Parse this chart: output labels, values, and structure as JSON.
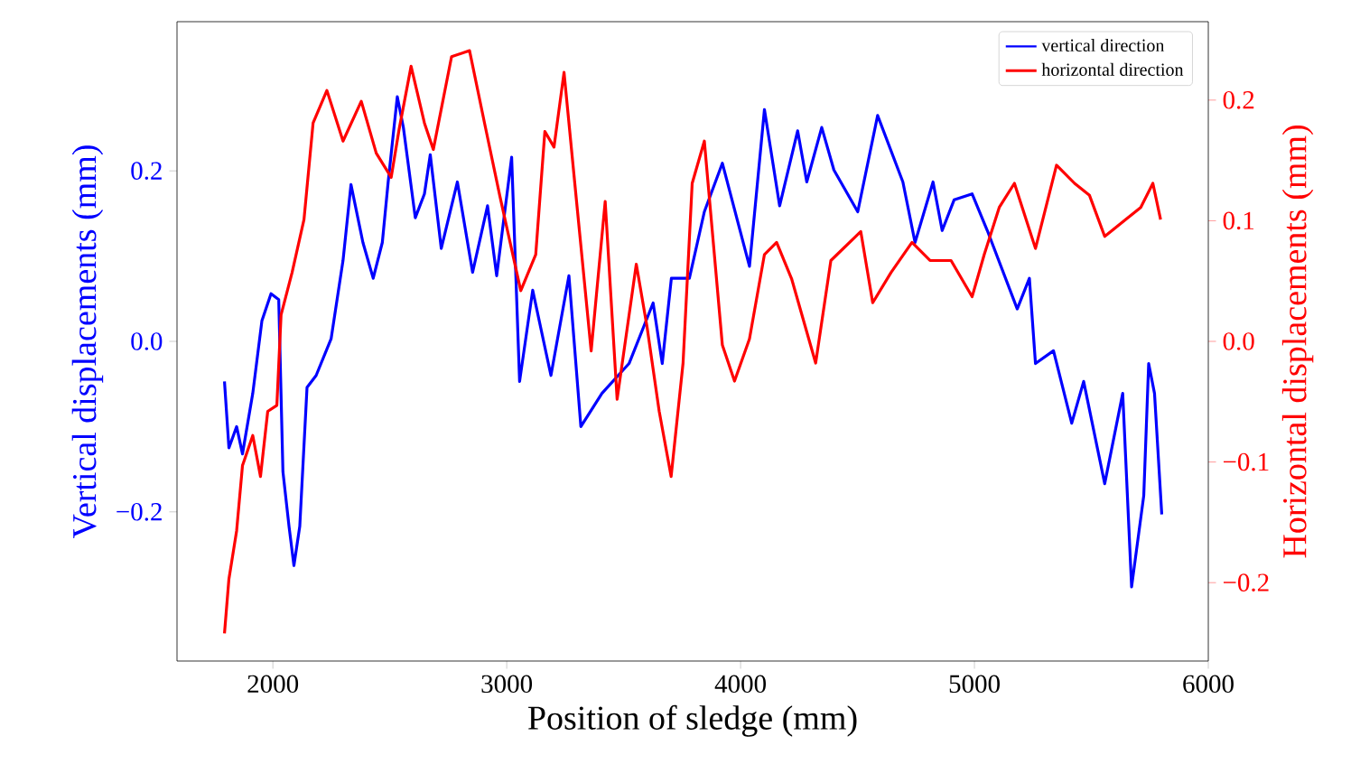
{
  "chart_data": {
    "type": "line",
    "xlabel": "Position of sledge (mm)",
    "ylabel": "Vertical displacements (mm)",
    "y2label": "Horizontal displacements (mm)",
    "legend": "top right",
    "xlim": [
      1590,
      6000
    ],
    "xticks": [
      2000,
      3000,
      4000,
      5000,
      6000
    ],
    "ylim": [
      -0.375,
      0.375
    ],
    "yticks": [
      {
        "value": -0.2,
        "label": "−0.2"
      },
      {
        "value": 0,
        "label": "0.0"
      },
      0.2
    ],
    "y2lim": [
      -0.265,
      0.265
    ],
    "y2ticks": [
      {
        "value": -0.2,
        "label": "−0.2"
      },
      {
        "value": -0.1,
        "label": "−0.1"
      },
      {
        "value": 0,
        "label": "0.0"
      },
      0.1,
      0.2
    ],
    "series": [
      {
        "name": "vertical direction",
        "color": "#0000ff",
        "x": [
          1793,
          1812,
          1845,
          1870,
          1914,
          1953,
          1992,
          2025,
          2043,
          2069,
          2090,
          2115,
          2146,
          2185,
          2249,
          2300,
          2334,
          2385,
          2429,
          2468,
          2493,
          2532,
          2558,
          2609,
          2648,
          2673,
          2720,
          2789,
          2854,
          2918,
          2957,
          3021,
          3055,
          3111,
          3189,
          3266,
          3317,
          3407,
          3523,
          3626,
          3665,
          3704,
          3781,
          3845,
          3922,
          4038,
          4102,
          4167,
          4244,
          4283,
          4347,
          4399,
          4501,
          4586,
          4694,
          4746,
          4823,
          4862,
          4913,
          4990,
          5055,
          5183,
          5235,
          5261,
          5338,
          5416,
          5467,
          5557,
          5634,
          5672,
          5724,
          5745,
          5770,
          5801
        ],
        "values": [
          -0.047,
          -0.125,
          -0.1,
          -0.132,
          -0.061,
          0.024,
          0.056,
          0.049,
          -0.153,
          -0.217,
          -0.263,
          -0.217,
          -0.054,
          -0.04,
          0.003,
          0.095,
          0.184,
          0.116,
          0.074,
          0.116,
          0.187,
          0.287,
          0.251,
          0.145,
          0.173,
          0.219,
          0.109,
          0.187,
          0.081,
          0.159,
          0.077,
          0.216,
          -0.047,
          0.06,
          -0.04,
          0.077,
          -0.1,
          -0.061,
          -0.026,
          0.045,
          -0.026,
          0.074,
          0.074,
          0.152,
          0.209,
          0.088,
          0.272,
          0.159,
          0.247,
          0.187,
          0.251,
          0.201,
          0.152,
          0.265,
          0.187,
          0.116,
          0.187,
          0.13,
          0.166,
          0.173,
          0.13,
          0.038,
          0.074,
          -0.026,
          -0.011,
          -0.096,
          -0.047,
          -0.167,
          -0.061,
          -0.288,
          -0.181,
          -0.026,
          -0.061,
          -0.203
        ]
      },
      {
        "name": "horizontal direction",
        "color": "#ff0000",
        "axis": "y2",
        "x": [
          1793,
          1812,
          1845,
          1870,
          1914,
          1947,
          1978,
          2017,
          2035,
          2082,
          2133,
          2172,
          2231,
          2300,
          2378,
          2442,
          2506,
          2540,
          2591,
          2648,
          2686,
          2764,
          2841,
          2905,
          2970,
          3060,
          3124,
          3163,
          3202,
          3245,
          3291,
          3361,
          3421,
          3472,
          3554,
          3600,
          3652,
          3703,
          3754,
          3793,
          3845,
          3922,
          3974,
          4038,
          4102,
          4154,
          4218,
          4321,
          4386,
          4514,
          4565,
          4643,
          4733,
          4810,
          4900,
          4990,
          5042,
          5106,
          5171,
          5261,
          5351,
          5428,
          5492,
          5557,
          5647,
          5711,
          5763,
          5796
        ],
        "values": [
          -0.242,
          -0.197,
          -0.157,
          -0.103,
          -0.078,
          -0.112,
          -0.058,
          -0.053,
          0.022,
          0.057,
          0.101,
          0.181,
          0.208,
          0.166,
          0.199,
          0.156,
          0.136,
          0.176,
          0.228,
          0.181,
          0.159,
          0.236,
          0.241,
          0.181,
          0.121,
          0.042,
          0.072,
          0.174,
          0.161,
          0.223,
          0.131,
          -0.008,
          0.116,
          -0.048,
          0.064,
          0.012,
          -0.058,
          -0.112,
          -0.018,
          0.131,
          0.166,
          -0.003,
          -0.033,
          0.002,
          0.072,
          0.082,
          0.052,
          -0.018,
          0.067,
          0.091,
          0.032,
          0.057,
          0.082,
          0.067,
          0.067,
          0.037,
          0.072,
          0.111,
          0.131,
          0.077,
          0.146,
          0.131,
          0.121,
          0.087,
          0.101,
          0.111,
          0.131,
          0.101
        ]
      }
    ]
  }
}
